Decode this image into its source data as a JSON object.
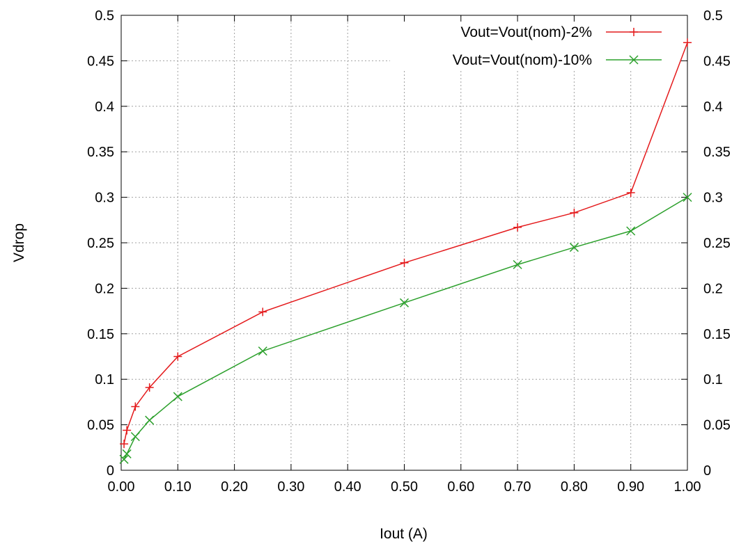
{
  "chart_data": {
    "type": "line",
    "title": "",
    "xlabel": "Iout (A)",
    "ylabel": "Vdrop",
    "xlim": [
      0,
      1
    ],
    "ylim": [
      0,
      0.5
    ],
    "x_ticks": [
      0,
      0.1,
      0.2,
      0.3,
      0.4,
      0.5,
      0.6,
      0.7,
      0.8,
      0.9,
      1.0
    ],
    "x_tick_labels": [
      "0.00",
      "0.10",
      "0.20",
      "0.30",
      "0.40",
      "0.50",
      "0.60",
      "0.70",
      "0.80",
      "0.90",
      "1.00"
    ],
    "y_ticks": [
      0,
      0.05,
      0.1,
      0.15,
      0.2,
      0.25,
      0.3,
      0.35,
      0.4,
      0.45,
      0.5
    ],
    "y_tick_labels": [
      "0",
      "0.05",
      "0.1",
      "0.15",
      "0.2",
      "0.25",
      "0.3",
      "0.35",
      "0.4",
      "0.45",
      "0.5"
    ],
    "grid": true,
    "legend_position": "top-right",
    "series": [
      {
        "name": "Vout=Vout(nom)-2%",
        "color": "#e41a1c",
        "marker": "plus",
        "x": [
          0.005,
          0.01,
          0.025,
          0.05,
          0.1,
          0.25,
          0.5,
          0.7,
          0.8,
          0.9,
          1.0
        ],
        "y": [
          0.029,
          0.044,
          0.07,
          0.091,
          0.125,
          0.174,
          0.228,
          0.267,
          0.283,
          0.305,
          0.47
        ]
      },
      {
        "name": "Vout=Vout(nom)-10%",
        "color": "#2ca02c",
        "marker": "cross",
        "x": [
          0.005,
          0.01,
          0.025,
          0.05,
          0.1,
          0.25,
          0.5,
          0.7,
          0.8,
          0.9,
          1.0
        ],
        "y": [
          0.012,
          0.018,
          0.037,
          0.055,
          0.081,
          0.131,
          0.184,
          0.226,
          0.245,
          0.263,
          0.3
        ]
      }
    ]
  }
}
